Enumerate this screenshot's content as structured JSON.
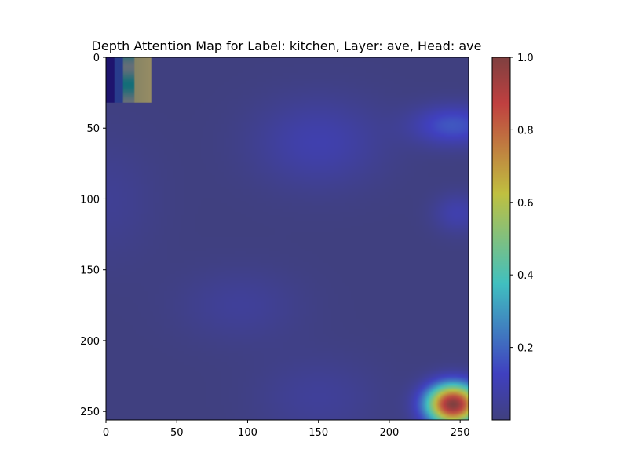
{
  "chart_data": {
    "type": "heatmap",
    "title": "Depth Attention Map for Label: kitchen, Layer: ave, Head: ave",
    "xlabel": "",
    "ylabel": "",
    "xlim": [
      0,
      256
    ],
    "ylim": [
      256,
      0
    ],
    "x_ticks": [
      0,
      50,
      100,
      150,
      200,
      250
    ],
    "y_ticks": [
      0,
      50,
      100,
      150,
      200,
      250
    ],
    "colormap": "jet",
    "overlay_alpha": 0.5,
    "colorbar": {
      "range": [
        0,
        1
      ],
      "ticks": [
        0.2,
        0.4,
        0.6,
        0.8,
        1.0
      ],
      "tick_labels": [
        "0.2",
        "0.4",
        "0.6",
        "0.8",
        "1.0"
      ]
    },
    "base_level": 0.0,
    "hotspots": [
      {
        "x": 245,
        "y": 245,
        "sx": 13,
        "sy": 10,
        "value": 1.0
      },
      {
        "x": 245,
        "y": 48,
        "sx": 20,
        "sy": 10,
        "value": 0.17
      },
      {
        "x": 150,
        "y": 60,
        "sx": 32,
        "sy": 22,
        "value": 0.09
      },
      {
        "x": 248,
        "y": 110,
        "sx": 12,
        "sy": 10,
        "value": 0.09
      },
      {
        "x": 95,
        "y": 175,
        "sx": 30,
        "sy": 18,
        "value": 0.05
      },
      {
        "x": 150,
        "y": 240,
        "sx": 30,
        "sy": 20,
        "value": 0.05
      },
      {
        "x": 0,
        "y": 100,
        "sx": 25,
        "sy": 30,
        "value": 0.04
      }
    ],
    "inset_image": {
      "x_range": [
        0,
        32
      ],
      "y_range": [
        0,
        32
      ]
    }
  }
}
